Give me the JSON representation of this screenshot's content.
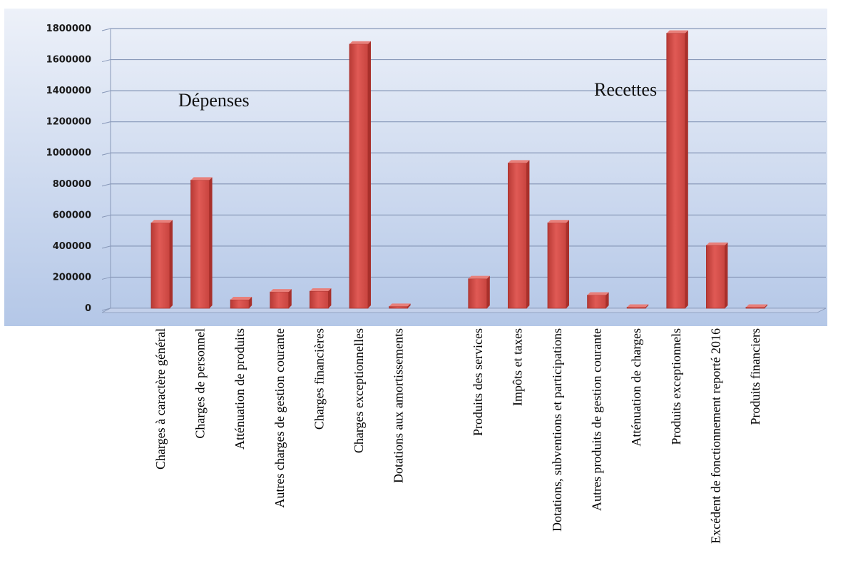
{
  "chart_data": {
    "type": "bar",
    "categories": [
      "Charges à caractère général",
      "Charges de personnel",
      "Atténuation de produits",
      "Autres charges de gestion courante",
      "Charges financières",
      "Charges exceptionnelles",
      "Dotations aux amortissements",
      "",
      "Produits des services",
      "Impôts et taxes",
      "Dotations, subventions et participations",
      "Autres produits de gestion courante",
      "Atténuation de charges",
      "Produits exceptionnels",
      "Excédent de fonctionnement reporté 2016",
      "Produits financiers"
    ],
    "values": [
      550000,
      825000,
      55000,
      105000,
      110000,
      1700000,
      12000,
      null,
      190000,
      935000,
      550000,
      85000,
      5000,
      1770000,
      405000,
      5000
    ],
    "group_labels": [
      "Dépenses",
      "Recettes"
    ],
    "y_ticks": [
      "0",
      "200000",
      "400000",
      "600000",
      "800000",
      "1000000",
      "1200000",
      "1400000",
      "1600000",
      "1800000"
    ],
    "ylim": [
      0,
      1800000
    ],
    "grid": true,
    "colors": {
      "bar": "#d9534f",
      "bar_dark": "#a8302b",
      "bar_top": "#e8807b",
      "bg_top": "#e6ecf7",
      "bg_bottom": "#b3c6e6",
      "grid": "#8898b8"
    }
  }
}
